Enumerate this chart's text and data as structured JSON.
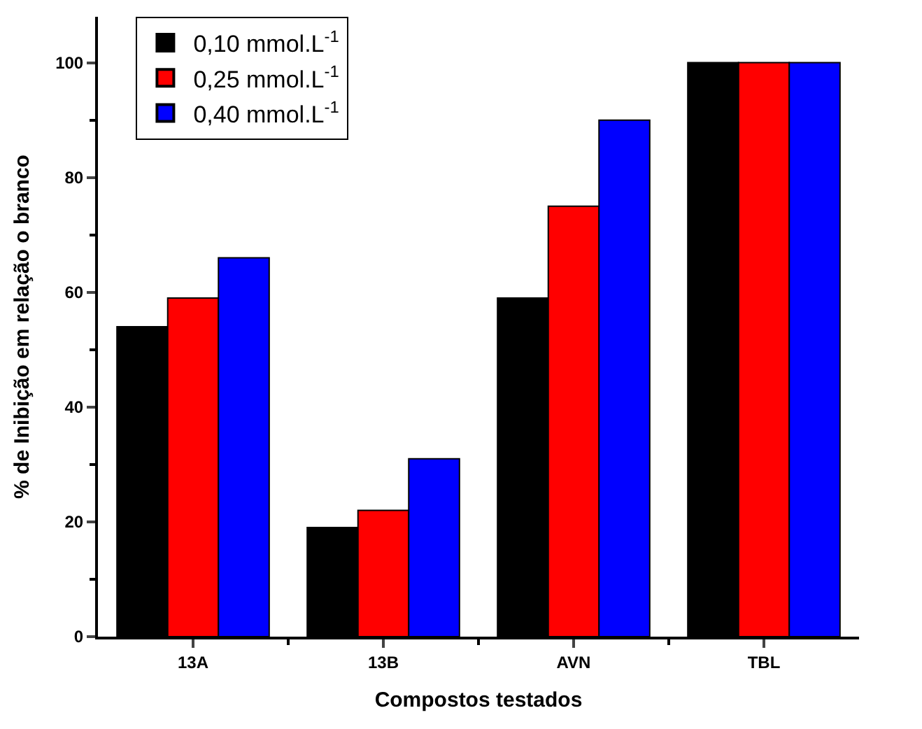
{
  "chart_data": {
    "type": "bar",
    "xlabel": "Compostos testados",
    "ylabel": "% de Inibição em relação o branco",
    "categories": [
      "13A",
      "13B",
      "AVN",
      "TBL"
    ],
    "series": [
      {
        "name": "0,10 mmol.L$^{-1}$",
        "color": "#000000",
        "values": [
          54,
          19,
          59,
          100
        ]
      },
      {
        "name": "0,25 mmol.L$^{-1}$",
        "color": "#ff0000",
        "values": [
          59,
          22,
          75,
          100
        ]
      },
      {
        "name": "0,40 mmol.L$^{-1}$",
        "color": "#0000ff",
        "values": [
          66,
          31,
          90,
          100
        ]
      }
    ],
    "ylim": [
      0,
      108
    ],
    "yticks": [
      0,
      20,
      40,
      60,
      80,
      100
    ],
    "legend": "top left"
  }
}
